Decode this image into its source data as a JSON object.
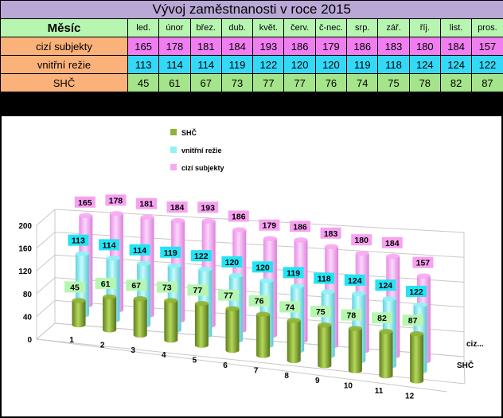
{
  "table": {
    "title": "Vývoj zaměstnanosti v roce 2015",
    "month_header": "Měsíc",
    "months": [
      "led.",
      "únor",
      "břez.",
      "dub.",
      "květ.",
      "červ.",
      "č-nec.",
      "srp.",
      "zář.",
      "říj.",
      "list.",
      "pros."
    ],
    "rows": [
      {
        "label": "cizí subjekty",
        "values": [
          165,
          178,
          181,
          184,
          193,
          186,
          179,
          186,
          183,
          180,
          184,
          157
        ]
      },
      {
        "label": "vnitřní režie",
        "values": [
          113,
          114,
          114,
          119,
          122,
          120,
          120,
          119,
          118,
          124,
          124,
          122
        ]
      },
      {
        "label": "SHČ",
        "values": [
          45,
          61,
          67,
          73,
          77,
          77,
          76,
          74,
          75,
          78,
          82,
          87
        ]
      }
    ]
  },
  "chart_data": {
    "type": "bar",
    "subtype": "3d-cylinder",
    "categories": [
      "1",
      "2",
      "3",
      "4",
      "5",
      "6",
      "7",
      "8",
      "9",
      "10",
      "11",
      "12"
    ],
    "series": [
      {
        "name": "SHČ",
        "values": [
          45,
          61,
          67,
          73,
          77,
          77,
          76,
          74,
          75,
          78,
          82,
          87
        ],
        "color": "#8fb333",
        "label_color": "#b7f6b1"
      },
      {
        "name": "vnitřní režie",
        "values": [
          113,
          114,
          114,
          119,
          122,
          120,
          120,
          119,
          118,
          124,
          124,
          122
        ],
        "color": "#8ef2f6",
        "label_color": "#22e4f5"
      },
      {
        "name": "cizí subjekty",
        "values": [
          165,
          178,
          181,
          184,
          193,
          186,
          179,
          186,
          183,
          180,
          184,
          157
        ],
        "color": "#f7a9f4",
        "label_color": "#f7a1f0"
      }
    ],
    "series_axis_labels": [
      "ciz...",
      "SHČ"
    ],
    "yticks": [
      0,
      40,
      80,
      120,
      160,
      200
    ],
    "ylim": [
      0,
      200
    ],
    "legend_position": "top-left",
    "grid": true
  }
}
